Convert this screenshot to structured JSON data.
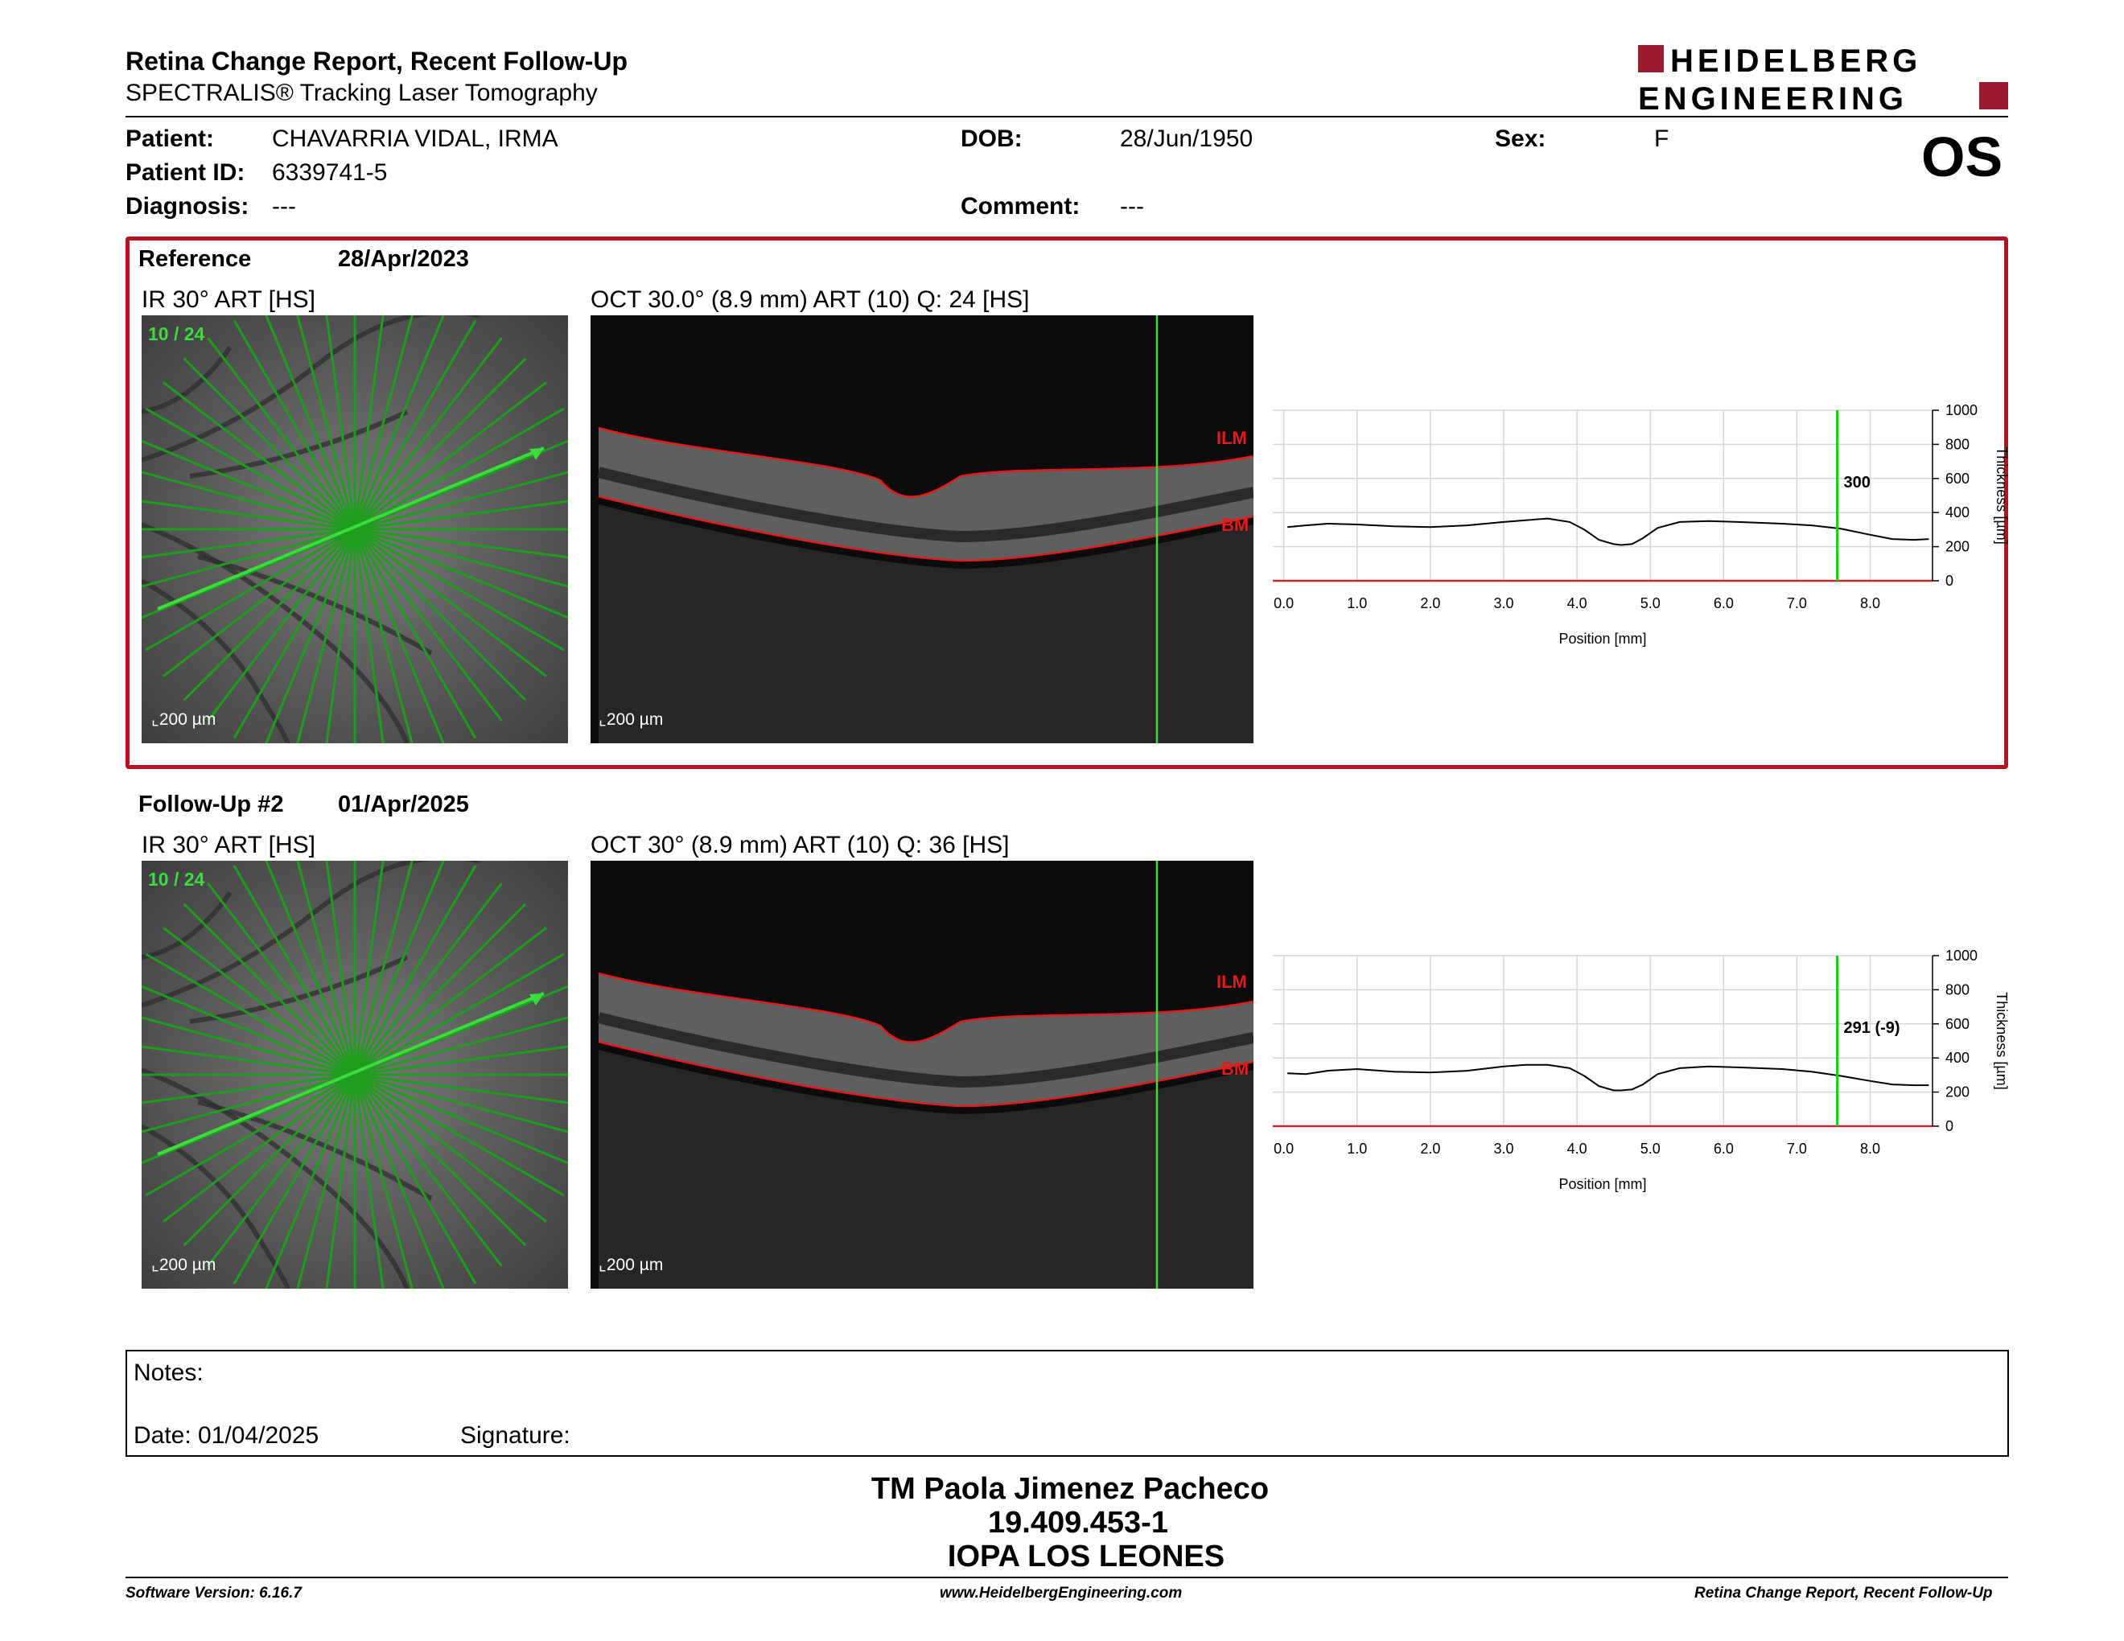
{
  "header": {
    "title": "Retina Change Report, Recent Follow-Up",
    "subtitle": "SPECTRALIS® Tracking Laser Tomography",
    "logo_line1": "HEIDELBERG",
    "logo_line2": "ENGINEERING",
    "brand_color": "#9a1b2e"
  },
  "patient": {
    "patient_label": "Patient:",
    "patient_value": "CHAVARRIA VIDAL, IRMA",
    "id_label": "Patient ID:",
    "id_value": "6339741-5",
    "diagnosis_label": "Diagnosis:",
    "diagnosis_value": "---",
    "dob_label": "DOB:",
    "dob_value": "28/Jun/1950",
    "comment_label": "Comment:",
    "comment_value": "---",
    "sex_label": "Sex:",
    "sex_value": "F",
    "eye": "OS"
  },
  "reference": {
    "label": "Reference",
    "date": "28/Apr/2023",
    "ir_title": "IR 30° ART [HS]",
    "ir_counter": "10 / 24",
    "oct_title": "OCT 30.0° (8.9 mm) ART (10) Q: 24 [HS]",
    "scale_label": "200 µm",
    "ilm_label": "ILM",
    "bm_label": "BM",
    "cursor_value": "300"
  },
  "followup": {
    "label": "Follow-Up #2",
    "date": "01/Apr/2025",
    "ir_title": "IR 30° ART [HS]",
    "ir_counter": "10 / 24",
    "oct_title": "OCT 30° (8.9 mm) ART (10) Q: 36 [HS]",
    "scale_label": "200 µm",
    "ilm_label": "ILM",
    "bm_label": "BM",
    "cursor_value": "291 (-9)"
  },
  "chart_data": [
    {
      "type": "line",
      "xlabel": "Position [mm]",
      "ylabel": "Thickness [µm]",
      "xlim": [
        -0.15,
        8.85
      ],
      "ylim": [
        0,
        1000
      ],
      "x_ticks": [
        "0.0",
        "1.0",
        "2.0",
        "3.0",
        "4.0",
        "5.0",
        "6.0",
        "7.0",
        "8.0"
      ],
      "y_ticks": [
        "0",
        "200",
        "400",
        "600",
        "800",
        "1000"
      ],
      "grid": true,
      "cursor_x": 7.55,
      "cursor_label": "300",
      "x": [
        0.05,
        0.3,
        0.6,
        1.0,
        1.5,
        2.0,
        2.5,
        3.0,
        3.3,
        3.6,
        3.9,
        4.1,
        4.3,
        4.5,
        4.6,
        4.75,
        4.9,
        5.1,
        5.4,
        5.8,
        6.2,
        6.8,
        7.2,
        7.6,
        8.0,
        8.3,
        8.6,
        8.8
      ],
      "values": [
        315,
        325,
        335,
        330,
        320,
        315,
        325,
        345,
        355,
        365,
        345,
        300,
        240,
        215,
        210,
        215,
        250,
        310,
        345,
        350,
        345,
        335,
        325,
        305,
        270,
        245,
        240,
        245
      ]
    },
    {
      "type": "line",
      "xlabel": "Position [mm]",
      "ylabel": "Thickness [µm]",
      "xlim": [
        -0.15,
        8.85
      ],
      "ylim": [
        0,
        1000
      ],
      "x_ticks": [
        "0.0",
        "1.0",
        "2.0",
        "3.0",
        "4.0",
        "5.0",
        "6.0",
        "7.0",
        "8.0"
      ],
      "y_ticks": [
        "0",
        "200",
        "400",
        "600",
        "800",
        "1000"
      ],
      "grid": true,
      "cursor_x": 7.55,
      "cursor_label": "291 (-9)",
      "x": [
        0.05,
        0.3,
        0.6,
        1.0,
        1.5,
        2.0,
        2.5,
        3.0,
        3.3,
        3.6,
        3.9,
        4.1,
        4.3,
        4.5,
        4.6,
        4.75,
        4.9,
        5.1,
        5.4,
        5.8,
        6.2,
        6.8,
        7.2,
        7.6,
        8.0,
        8.3,
        8.6,
        8.8
      ],
      "values": [
        310,
        305,
        325,
        335,
        320,
        315,
        325,
        350,
        360,
        360,
        340,
        295,
        235,
        210,
        210,
        215,
        245,
        305,
        340,
        350,
        345,
        335,
        320,
        295,
        265,
        245,
        240,
        240
      ]
    }
  ],
  "notes": {
    "notes_label": "Notes:",
    "date_label": "Date: 01/04/2025",
    "signature_label": "Signature:"
  },
  "operator": {
    "name": "TM Paola Jimenez Pacheco",
    "id": "19.409.453-1",
    "institution": "IOPA LOS LEONES"
  },
  "footer": {
    "software": "Software Version: 6.16.7",
    "website": "www.HeidelbergEngineering.com",
    "report_name": "Retina Change Report, Recent Follow-Up"
  }
}
